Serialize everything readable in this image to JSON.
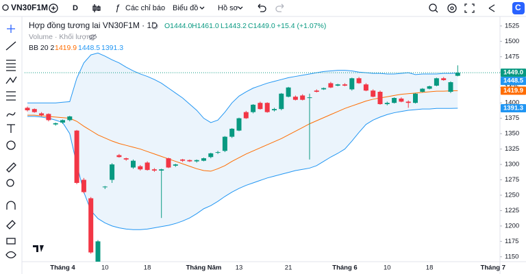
{
  "toolbar": {
    "symbol": "VN30F1M",
    "interval": "D",
    "indicators": "Các chỉ báo",
    "chart": "Biểu đồ",
    "profile": "Hồ sơ"
  },
  "legend": {
    "title": "Hợp đồng tương lai VN30F1M · 1D",
    "open": "O1444.0",
    "high": "H1461.0",
    "low": "L1443.2",
    "close": "C1449.0",
    "change": "+15.4 (+1.07%)",
    "volume": "Volume · Khối lượng",
    "bb": "BB 20 2",
    "bb_middle": "1419.9",
    "bb_upper": "1448.5",
    "bb_lower": "1391.3"
  },
  "chart_data": {
    "type": "candlestick",
    "categories": [
      null,
      null,
      null,
      null,
      null,
      "Tháng 4",
      null,
      null,
      null,
      null,
      null,
      "10",
      null,
      null,
      null,
      null,
      null,
      "18",
      null,
      null,
      null,
      null,
      null,
      null,
      null,
      "Tháng Năm",
      null,
      null,
      null,
      null,
      "13",
      null,
      null,
      null,
      null,
      null,
      null,
      "21",
      null,
      null,
      null,
      null,
      null,
      null,
      null,
      "Tháng 6",
      null,
      null,
      null,
      null,
      null,
      "10",
      null,
      null,
      null,
      null,
      null,
      "18",
      null,
      null,
      null,
      null,
      null,
      null,
      null,
      null,
      "Tháng 7"
    ],
    "open": [
      1392,
      1390,
      1383,
      1382,
      1365,
      1368,
      1372,
      1355,
      1275,
      1245,
      1130,
      1263,
      1275,
      1315,
      1310,
      1295,
      1297,
      1303,
      1292,
      1290,
      1310,
      1298,
      1308,
      1307,
      1305,
      1306,
      1312,
      1319,
      1322,
      1345,
      1355,
      1385,
      1385,
      1400,
      1400,
      1388,
      1390,
      1410,
      1410,
      1412,
      1408,
      1420,
      1422,
      1432,
      1428,
      1430,
      1422,
      1440,
      1430,
      1420,
      1418,
      1398,
      1400,
      1407,
      1402,
      1400,
      1418,
      1423,
      1428,
      1440,
      1418,
      1444,
      null,
      null,
      null,
      null,
      null
    ],
    "high": [
      1394,
      1391,
      1385,
      1383,
      1368,
      1373,
      1379,
      1356,
      1278,
      1247,
      1177,
      1265,
      1302,
      1317,
      1311,
      1308,
      1299,
      1305,
      1294,
      1293,
      1311,
      1301,
      1309,
      1308,
      1308,
      1311,
      1319,
      1322,
      1346,
      1359,
      1376,
      1387,
      1398,
      1402,
      1401,
      1392,
      1416,
      1426,
      1412,
      1414,
      1415,
      1422,
      1425,
      1434,
      1431,
      1432,
      1441,
      1442,
      1432,
      1422,
      1420,
      1402,
      1409,
      1409,
      1404,
      1416,
      1424,
      1428,
      1441,
      1442,
      1435,
      1461,
      null,
      null,
      null,
      null,
      null
    ],
    "low": [
      1386,
      1384,
      1378,
      1370,
      1363,
      1366,
      1370,
      1268,
      1253,
      1155,
      1120,
      1260,
      1270,
      1311,
      1306,
      1293,
      1290,
      1290,
      1288,
      1213,
      1294,
      1296,
      1304,
      1304,
      1303,
      1305,
      1310,
      1317,
      1320,
      1343,
      1354,
      1374,
      1383,
      1389,
      1384,
      1386,
      1388,
      1409,
      1404,
      1404,
      1308,
      1417,
      1421,
      1424,
      1427,
      1427,
      1420,
      1431,
      1419,
      1409,
      1397,
      1396,
      1399,
      1401,
      1392,
      1399,
      1417,
      1422,
      1427,
      1436,
      1416,
      1443.2,
      null,
      null,
      null,
      null,
      null
    ],
    "close": [
      1388,
      1385,
      1380,
      1372,
      1367,
      1372,
      1378,
      1270,
      1255,
      1157,
      1175,
      1264,
      1300,
      1312,
      1308,
      1306,
      1292,
      1291,
      1290,
      1292,
      1295,
      1300,
      1306,
      1305,
      1307,
      1310,
      1318,
      1320,
      1345,
      1358,
      1375,
      1375,
      1397,
      1390,
      1385,
      1390,
      1415,
      1425,
      1405,
      1405,
      1409,
      1418,
      1424,
      1425,
      1430,
      1428,
      1440,
      1432,
      1420,
      1410,
      1398,
      1400,
      1408,
      1402,
      1400,
      1415,
      1423,
      1427,
      1440,
      1437,
      1433.6,
      1449,
      null,
      null,
      null,
      null,
      null
    ],
    "up_color": "#089981",
    "down_color": "#f23645",
    "series": [
      {
        "name": "Upper",
        "color": "#2196f3",
        "values": [
          1400,
          1400,
          1400,
          1400,
          1400,
          1401,
          1402,
          1440,
          1465,
          1478,
          1481,
          1476,
          1470,
          1465,
          1458,
          1452,
          1447,
          1443,
          1438,
          1432,
          1424,
          1416,
          1408,
          1398,
          1388,
          1375,
          1368,
          1372,
          1385,
          1400,
          1411,
          1418,
          1424,
          1428,
          1432,
          1435,
          1438,
          1441,
          1443,
          1445,
          1447,
          1449,
          1451,
          1452,
          1453,
          1453,
          1452,
          1450,
          1449,
          1448,
          1448,
          1447,
          1447,
          1448,
          1449,
          1446,
          1447,
          1447,
          1447,
          1448,
          1448,
          1448.5,
          null,
          null,
          null,
          null,
          null
        ]
      },
      {
        "name": "Basis",
        "color": "#ff6d00",
        "values": [
          1380,
          1380,
          1379,
          1378,
          1377,
          1376,
          1375,
          1370,
          1362,
          1355,
          1348,
          1343,
          1338,
          1334,
          1331,
          1328,
          1325,
          1321,
          1317,
          1313,
          1309,
          1305,
          1301,
          1297,
          1293,
          1290,
          1289,
          1293,
          1298,
          1305,
          1311,
          1317,
          1322,
          1327,
          1332,
          1337,
          1342,
          1348,
          1354,
          1360,
          1366,
          1371,
          1376,
          1381,
          1386,
          1391,
          1395,
          1399,
          1403,
          1406,
          1408,
          1410,
          1412,
          1414,
          1415,
          1416,
          1417,
          1418,
          1419,
          1419,
          1419.5,
          1419.9,
          null,
          null,
          null,
          null,
          null
        ]
      },
      {
        "name": "Lower",
        "color": "#2196f3",
        "values": [
          1378,
          1378,
          1377,
          1375,
          1372,
          1368,
          1350,
          1300,
          1255,
          1225,
          1212,
          1205,
          1200,
          1197,
          1195,
          1194,
          1194,
          1195,
          1197,
          1199,
          1201,
          1204,
          1208,
          1213,
          1220,
          1228,
          1233,
          1240,
          1248,
          1255,
          1261,
          1266,
          1270,
          1274,
          1278,
          1281,
          1284,
          1287,
          1290,
          1292,
          1294,
          1298,
          1305,
          1312,
          1318,
          1325,
          1338,
          1352,
          1365,
          1372,
          1377,
          1381,
          1384,
          1386,
          1388,
          1389,
          1390,
          1390,
          1391,
          1391,
          1391,
          1391.3,
          null,
          null,
          null,
          null,
          null
        ]
      }
    ],
    "band_fill": "#e3f0fb",
    "ylim": [
      1142,
      1536
    ],
    "yticks": [
      1150,
      1175,
      1200,
      1225,
      1250,
      1275,
      1300,
      1325,
      1350,
      1375,
      1400,
      1425,
      1450,
      1475,
      1500,
      1525
    ],
    "price_tags": [
      {
        "value": 1449,
        "label": "1449.0",
        "color": "#089981"
      },
      {
        "value": 1448.5,
        "label": "1448.5",
        "color": "#2196f3"
      },
      {
        "value": 1419.9,
        "label": "1419.9",
        "color": "#ff6d00"
      },
      {
        "value": 1391.3,
        "label": "1391.3",
        "color": "#2196f3"
      }
    ]
  }
}
